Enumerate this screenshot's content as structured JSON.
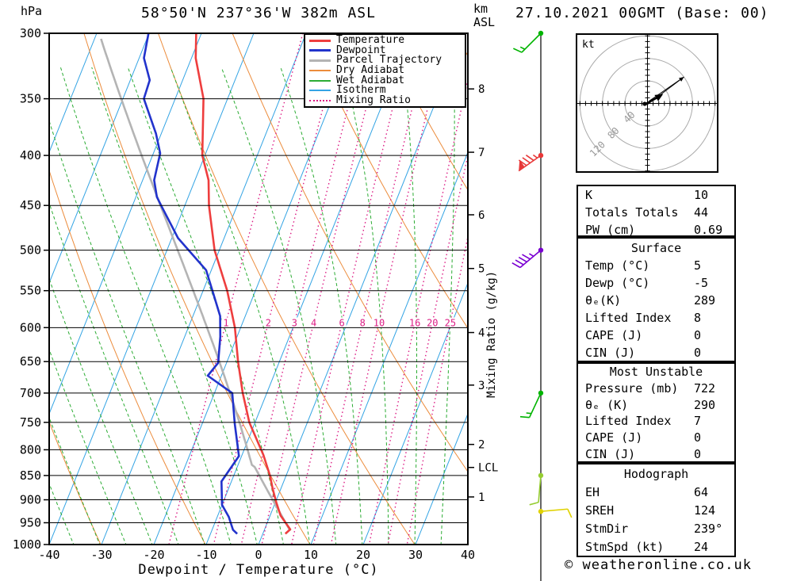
{
  "header": {
    "pressure_axis_unit": "hPa",
    "station_title": "58°50'N 237°36'W 382m ASL",
    "altitude_axis_unit_line1": "km",
    "altitude_axis_unit_line2": "ASL",
    "run_datetime": "27.10.2021 00GMT (Base: 00)"
  },
  "legend": {
    "items": [
      {
        "label": "Temperature",
        "color": "#ee3e3e",
        "style": "solid-thick"
      },
      {
        "label": "Dewpoint",
        "color": "#2233cc",
        "style": "solid-thick"
      },
      {
        "label": "Parcel Trajectory",
        "color": "#b4b4b4",
        "style": "solid-thick"
      },
      {
        "label": "Dry Adiabat",
        "color": "#ec8c3c",
        "style": "solid-thin"
      },
      {
        "label": "Wet Adiabat",
        "color": "#2cac34",
        "style": "solid-thin"
      },
      {
        "label": "Isotherm",
        "color": "#34a4e4",
        "style": "solid-thin"
      },
      {
        "label": "Mixing Ratio",
        "color": "#dc1c84",
        "style": "dotted"
      }
    ]
  },
  "axes": {
    "pressure_ticks_hpa": [
      300,
      350,
      400,
      450,
      500,
      550,
      600,
      650,
      700,
      750,
      800,
      850,
      900,
      950,
      1000
    ],
    "temperature_ticks_c": [
      -40,
      -30,
      -20,
      -10,
      0,
      10,
      20,
      30,
      40
    ],
    "x_axis_label": "Dewpoint / Temperature (°C)",
    "km_tick_labels": [
      1,
      2,
      3,
      4,
      5,
      6,
      7,
      8
    ],
    "lcl_marker": "LCL",
    "mixing_ratio_axis_label": "Mixing Ratio (g/kg)",
    "mixing_ratio_line_labels": [
      1,
      2,
      3,
      4,
      6,
      8,
      10,
      16,
      20,
      25
    ]
  },
  "chart_data": {
    "type": "skewt-log-p-sounding",
    "pressure_range_hpa": [
      300,
      1000
    ],
    "temperature_range_c": [
      -40,
      40
    ],
    "isotherm_step_c": 10,
    "dry_adiabat_theta_k": [
      243,
      263,
      283,
      303,
      323,
      343,
      363,
      383,
      403,
      423
    ],
    "wet_adiabat_thetaw_c": [
      -40,
      -35,
      -30,
      -25,
      -20,
      -15,
      -10,
      -5,
      0,
      5,
      10,
      15,
      20,
      25,
      30,
      35
    ],
    "temperature_profile_p_T": [
      [
        300,
        -51.0
      ],
      [
        318,
        -49.2
      ],
      [
        350,
        -44.6
      ],
      [
        400,
        -40.5
      ],
      [
        424,
        -37.4
      ],
      [
        450,
        -35.4
      ],
      [
        500,
        -30.9
      ],
      [
        550,
        -25.4
      ],
      [
        600,
        -21.1
      ],
      [
        650,
        -17.9
      ],
      [
        700,
        -14.6
      ],
      [
        750,
        -11.1
      ],
      [
        810,
        -5.9
      ],
      [
        850,
        -3.1
      ],
      [
        878,
        -1.5
      ],
      [
        906,
        0.2
      ],
      [
        934,
        2.0
      ],
      [
        965,
        4.9
      ],
      [
        975,
        4.3
      ]
    ],
    "dewpoint_profile_p_Td": [
      [
        300,
        -60.1
      ],
      [
        318,
        -59.1
      ],
      [
        335,
        -56.3
      ],
      [
        350,
        -56.0
      ],
      [
        380,
        -51.0
      ],
      [
        398,
        -48.7
      ],
      [
        424,
        -47.8
      ],
      [
        441,
        -46.0
      ],
      [
        452,
        -44.2
      ],
      [
        486,
        -38.8
      ],
      [
        524,
        -31.0
      ],
      [
        552,
        -28.0
      ],
      [
        584,
        -24.8
      ],
      [
        613,
        -23.2
      ],
      [
        652,
        -21.6
      ],
      [
        672,
        -22.6
      ],
      [
        700,
        -16.6
      ],
      [
        752,
        -13.8
      ],
      [
        812,
        -10.5
      ],
      [
        862,
        -11.9
      ],
      [
        911,
        -10.0
      ],
      [
        937,
        -7.8
      ],
      [
        966,
        -6.0
      ],
      [
        975,
        -4.9
      ]
    ],
    "parcel": {
      "surface_pressure_hpa": 968,
      "surface_temp_c": 5,
      "surface_dewpoint_c": -5
    },
    "lcl_pressure_hpa": 834,
    "km_levels_km_p": [
      [
        1,
        894
      ],
      [
        2,
        790
      ],
      [
        3,
        687
      ],
      [
        4,
        607
      ],
      [
        5,
        522
      ],
      [
        6,
        460
      ],
      [
        7,
        397
      ],
      [
        8,
        342
      ]
    ],
    "winds": [
      {
        "pressure_hpa": 300,
        "speed_kt": 15,
        "dir_from_deg": 225,
        "color": "#00b400"
      },
      {
        "pressure_hpa": 400,
        "speed_kt": 85,
        "dir_from_deg": 235,
        "color": "#e83838"
      },
      {
        "pressure_hpa": 500,
        "speed_kt": 45,
        "dir_from_deg": 230,
        "color": "#7a00d2"
      },
      {
        "pressure_hpa": 700,
        "speed_kt": 15,
        "dir_from_deg": 205,
        "color": "#00b400"
      },
      {
        "pressure_hpa": 850,
        "speed_kt": 10,
        "dir_from_deg": 185,
        "color": "#96cd32"
      },
      {
        "pressure_hpa": 925,
        "speed_kt": 10,
        "dir_from_deg": 85,
        "color": "#e0d200"
      }
    ]
  },
  "hodograph": {
    "unit": "kt",
    "ring_speeds_kt": [
      40,
      80,
      120
    ],
    "wind_shear_arrow": {
      "from_deg": 234,
      "speed_kt": 80
    },
    "storm_motion_arrow": {
      "from_deg": 239,
      "speed_kt": 24
    }
  },
  "panels": [
    {
      "title": "",
      "rows": [
        [
          "K",
          "10"
        ],
        [
          "Totals Totals",
          "44"
        ],
        [
          "PW (cm)",
          "0.69"
        ]
      ]
    },
    {
      "title": "Surface",
      "rows": [
        [
          "Temp (°C)",
          "5"
        ],
        [
          "Dewp (°C)",
          "-5"
        ],
        [
          "θₑ(K)",
          "289"
        ],
        [
          "Lifted Index",
          "8"
        ],
        [
          "CAPE (J)",
          "0"
        ],
        [
          "CIN (J)",
          "0"
        ]
      ]
    },
    {
      "title": "Most Unstable",
      "rows": [
        [
          "Pressure (mb)",
          "722"
        ],
        [
          "θₑ (K)",
          "290"
        ],
        [
          "Lifted Index",
          "7"
        ],
        [
          "CAPE (J)",
          "0"
        ],
        [
          "CIN (J)",
          "0"
        ]
      ]
    },
    {
      "title": "Hodograph",
      "rows": [
        [
          "EH",
          "64"
        ],
        [
          "SREH",
          "124"
        ],
        [
          "StmDir",
          "239°"
        ],
        [
          "StmSpd (kt)",
          "24"
        ]
      ]
    }
  ],
  "footer": {
    "copyright": "© weatheronline.co.uk"
  },
  "colors": {
    "temperature": "#ee3e3e",
    "dewpoint": "#2233cc",
    "parcel": "#b4b4b4",
    "dry_adiabat": "#ec8c3c",
    "wet_adiabat": "#2cac34",
    "isotherm": "#34a4e4",
    "mixing_ratio": "#dc1c84",
    "frame": "#000000",
    "hodograph_rings": "#aaaaaa"
  }
}
